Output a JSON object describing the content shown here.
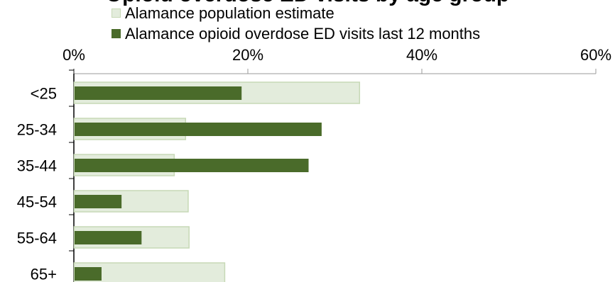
{
  "chart_data": {
    "type": "bar",
    "orientation": "horizontal",
    "title": "Opioid overdose ED visits by age group",
    "categories": [
      "<25",
      "25-34",
      "35-44",
      "45-54",
      "55-64",
      "65+"
    ],
    "series": [
      {
        "name": "Alamance population estimate",
        "color": "#e3ecdc",
        "stroke": "#c7d9b6",
        "values": [
          32.8,
          12.8,
          11.5,
          13.1,
          13.2,
          17.3
        ]
      },
      {
        "name": "Alamance opioid overdose ED visits last 12 months",
        "color": "#4a6b2a",
        "values": [
          19.2,
          28.4,
          26.9,
          5.4,
          7.7,
          3.1
        ]
      }
    ],
    "x_ticks": [
      "0%",
      "20%",
      "40%",
      "60%"
    ],
    "xlim": [
      0,
      60
    ],
    "x_axis_position": "top",
    "grid": false,
    "legend_position": "top"
  }
}
